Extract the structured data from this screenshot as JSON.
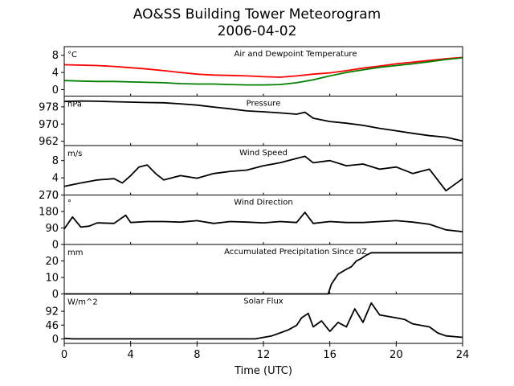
{
  "title": "AO&SS Building Tower Meteorogram",
  "subtitle": "2006-04-02",
  "chart_data": {
    "type": "line",
    "xlabel": "Time (UTC)",
    "xlim": [
      0,
      24
    ],
    "xticks": [
      0,
      4,
      8,
      12,
      16,
      20,
      24
    ],
    "panels": [
      {
        "title": "Air and Dewpoint Temperature",
        "unit": "°C",
        "ylim": [
          -1.5,
          10
        ],
        "yticks": [
          0,
          4,
          8
        ],
        "colors": {
          "air": "#ff0000",
          "dew": "#008000"
        },
        "series": [
          {
            "color": "#ff0000",
            "x": [
              0,
              1,
              2,
              3,
              4,
              5,
              6,
              7,
              8,
              9,
              10,
              11,
              12,
              13,
              14,
              15,
              16,
              17,
              18,
              19,
              20,
              21,
              22,
              23,
              24
            ],
            "y": [
              5.8,
              5.7,
              5.6,
              5.4,
              5.1,
              4.8,
              4.4,
              4.0,
              3.6,
              3.4,
              3.3,
              3.2,
              3.0,
              2.9,
              3.2,
              3.6,
              3.9,
              4.4,
              5.0,
              5.5,
              6.0,
              6.4,
              6.8,
              7.2,
              7.5
            ]
          },
          {
            "color": "#008000",
            "x": [
              0,
              1,
              2,
              3,
              4,
              5,
              6,
              7,
              8,
              9,
              10,
              11,
              12,
              13,
              14,
              15,
              16,
              17,
              18,
              19,
              20,
              21,
              22,
              23,
              24
            ],
            "y": [
              2.1,
              2.0,
              1.9,
              1.9,
              1.8,
              1.7,
              1.6,
              1.4,
              1.3,
              1.3,
              1.2,
              1.1,
              1.1,
              1.2,
              1.6,
              2.3,
              3.2,
              4.0,
              4.6,
              5.2,
              5.6,
              6.0,
              6.5,
              7.0,
              7.4
            ]
          }
        ]
      },
      {
        "title": "Pressure",
        "unit": "hPa",
        "ylim": [
          960,
          983
        ],
        "yticks": [
          962,
          970,
          978
        ],
        "series": [
          {
            "color": "#000000",
            "x": [
              0,
              1,
              2,
              3,
              4,
              5,
              6,
              7,
              8,
              9,
              10,
              11,
              12,
              13,
              14,
              14.5,
              15,
              16,
              17,
              18,
              19,
              20,
              21,
              22,
              23,
              24
            ],
            "y": [
              980.5,
              980.7,
              980.6,
              980.4,
              980.2,
              980.0,
              979.9,
              979.4,
              978.8,
              977.9,
              977.1,
              976.1,
              975.7,
              975.2,
              974.6,
              975.5,
              972.7,
              971.2,
              970.4,
              969.4,
              968.0,
              966.9,
              965.7,
              964.6,
              963.9,
              962.1
            ]
          }
        ]
      },
      {
        "title": "Wind Speed",
        "unit": "m/s",
        "ylim": [
          0,
          11.5
        ],
        "yticks": [
          0,
          4,
          8
        ],
        "series": [
          {
            "color": "#000000",
            "x": [
              0,
              1,
              2,
              3,
              3.5,
              4,
              4.5,
              5,
              5.5,
              6,
              7,
              8,
              9,
              10,
              11,
              12,
              13,
              14,
              14.5,
              15,
              16,
              17,
              18,
              19,
              20,
              21,
              22,
              23,
              24
            ],
            "y": [
              2.0,
              2.8,
              3.5,
              3.8,
              2.8,
              4.5,
              6.5,
              7.0,
              5.0,
              3.5,
              4.5,
              3.9,
              5.0,
              5.5,
              5.8,
              6.8,
              7.5,
              8.5,
              9.0,
              7.5,
              8.0,
              6.8,
              7.2,
              6.0,
              6.5,
              5.0,
              6.0,
              1.0,
              3.8
            ]
          }
        ]
      },
      {
        "title": "Wind Direction",
        "unit": "°",
        "ylim": [
          0,
          270
        ],
        "yticks": [
          0,
          90,
          180,
          270
        ],
        "series": [
          {
            "color": "#000000",
            "x": [
              0,
              0.5,
              1,
              1.5,
              2,
              3,
              3.7,
              4,
              5,
              6,
              7,
              8,
              9,
              10,
              11,
              12,
              13,
              14,
              14.5,
              15,
              16,
              17,
              18,
              19,
              20,
              21,
              22,
              23,
              24
            ],
            "y": [
              85,
              150,
              95,
              100,
              118,
              115,
              160,
              120,
              125,
              125,
              122,
              130,
              115,
              125,
              122,
              118,
              125,
              120,
              175,
              115,
              125,
              120,
              120,
              125,
              130,
              122,
              110,
              80,
              70
            ]
          }
        ]
      },
      {
        "title": "Accumulated Precipitation Since 0Z",
        "unit": "mm",
        "ylim": [
          0,
          30
        ],
        "yticks": [
          0,
          10,
          20
        ],
        "series": [
          {
            "color": "#000000",
            "x": [
              0,
              15.9,
              16.1,
              16.5,
              17,
              17.3,
              17.6,
              17.9,
              18.2,
              18.5,
              24
            ],
            "y": [
              0,
              0,
              6,
              12,
              15,
              16.5,
              20,
              21.5,
              23.5,
              25,
              25
            ]
          }
        ]
      },
      {
        "title": "Solar Flux",
        "unit": "W/m^2",
        "ylim": [
          -15,
          150
        ],
        "yticks": [
          0,
          46,
          92
        ],
        "series": [
          {
            "color": "#000000",
            "x": [
              0,
              0.5,
              1,
              2,
              4,
              6,
              8,
              10,
              11.5,
              12.5,
              13,
              13.5,
              14,
              14.3,
              14.7,
              15,
              15.5,
              16,
              16.5,
              17,
              17.5,
              18,
              18.5,
              19,
              20,
              20.5,
              21,
              22,
              22.5,
              23,
              24
            ],
            "y": [
              2,
              0,
              0,
              0,
              0,
              0,
              0,
              0,
              0,
              10,
              20,
              30,
              45,
              70,
              85,
              40,
              60,
              25,
              55,
              40,
              100,
              55,
              120,
              80,
              70,
              65,
              50,
              40,
              20,
              10,
              5
            ]
          }
        ]
      }
    ]
  }
}
